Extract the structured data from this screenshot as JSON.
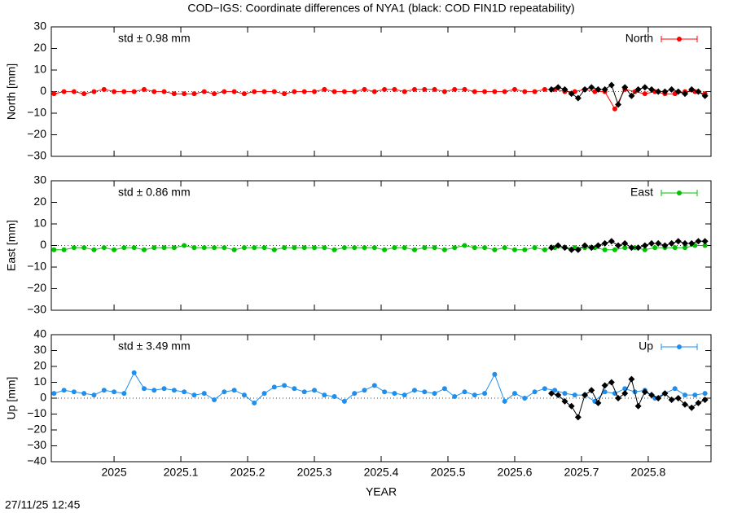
{
  "page": {
    "title": "COD−IGS: Coordinate differences of NYA1 (black: COD FIN1D repeatability)",
    "timestamp": "27/11/25 12:45"
  },
  "chart_data": [
    {
      "type": "line",
      "ylabel": "North [mm]",
      "annotation": "std ± 0.98 mm",
      "legend": "upper right",
      "zero_line": true,
      "xlim": [
        2024.906,
        2025.894
      ],
      "ylim": [
        -30,
        30
      ],
      "yticks": [
        {
          "value": -30,
          "label": "−30"
        },
        {
          "value": -20,
          "label": "−20"
        },
        {
          "value": -10,
          "label": "−10"
        },
        0,
        10,
        20,
        30
      ],
      "series": [
        {
          "name": "North",
          "color": "#ff0000",
          "x": [
            2024.91,
            2024.925,
            2024.94,
            2024.955,
            2024.97,
            2024.985,
            2025.0,
            2025.015,
            2025.03,
            2025.045,
            2025.06,
            2025.075,
            2025.09,
            2025.105,
            2025.12,
            2025.135,
            2025.15,
            2025.165,
            2025.18,
            2025.195,
            2025.21,
            2025.225,
            2025.24,
            2025.255,
            2025.27,
            2025.285,
            2025.3,
            2025.315,
            2025.33,
            2025.345,
            2025.36,
            2025.375,
            2025.39,
            2025.405,
            2025.42,
            2025.435,
            2025.45,
            2025.465,
            2025.48,
            2025.495,
            2025.51,
            2025.525,
            2025.54,
            2025.555,
            2025.57,
            2025.585,
            2025.6,
            2025.615,
            2025.63,
            2025.645,
            2025.66,
            2025.675,
            2025.69,
            2025.705,
            2025.72,
            2025.735,
            2025.75,
            2025.765,
            2025.78,
            2025.795,
            2025.81,
            2025.825,
            2025.84,
            2025.855,
            2025.87,
            2025.885
          ],
          "values": [
            -1,
            0,
            0,
            -1,
            0,
            1,
            0,
            0,
            0,
            1,
            0,
            0,
            -1,
            -1,
            -1,
            0,
            -1,
            0,
            0,
            -1,
            0,
            0,
            0,
            -1,
            0,
            0,
            0,
            1,
            0,
            0,
            0,
            1,
            0,
            1,
            1,
            0,
            1,
            1,
            1,
            0,
            1,
            1,
            0,
            0,
            0,
            0,
            1,
            0,
            0,
            1,
            1,
            0,
            0,
            1,
            0,
            0,
            -8,
            1,
            0,
            -1,
            0,
            -1,
            -1,
            0,
            0,
            -1
          ]
        },
        {
          "color": "#000000",
          "x": [
            2025.655,
            2025.665,
            2025.675,
            2025.685,
            2025.695,
            2025.705,
            2025.715,
            2025.725,
            2025.735,
            2025.745,
            2025.755,
            2025.765,
            2025.775,
            2025.785,
            2025.795,
            2025.805,
            2025.815,
            2025.825,
            2025.835,
            2025.845,
            2025.855,
            2025.865,
            2025.875,
            2025.885
          ],
          "values": [
            1,
            2,
            1,
            -1,
            -3,
            1,
            2,
            1,
            1,
            3,
            -6,
            2,
            -2,
            1,
            2,
            1,
            0,
            0,
            1,
            0,
            -1,
            1,
            0,
            -2
          ]
        }
      ]
    },
    {
      "type": "line",
      "ylabel": "East [mm]",
      "annotation": "std ± 0.86 mm",
      "legend": "upper right",
      "zero_line": true,
      "xlim": [
        2024.906,
        2025.894
      ],
      "ylim": [
        -30,
        30
      ],
      "yticks": [
        {
          "value": -30,
          "label": "−30"
        },
        {
          "value": -20,
          "label": "−20"
        },
        {
          "value": -10,
          "label": "−10"
        },
        0,
        10,
        20,
        30
      ],
      "series": [
        {
          "name": "East",
          "color": "#00c000",
          "x": [
            2024.91,
            2024.925,
            2024.94,
            2024.955,
            2024.97,
            2024.985,
            2025.0,
            2025.015,
            2025.03,
            2025.045,
            2025.06,
            2025.075,
            2025.09,
            2025.105,
            2025.12,
            2025.135,
            2025.15,
            2025.165,
            2025.18,
            2025.195,
            2025.21,
            2025.225,
            2025.24,
            2025.255,
            2025.27,
            2025.285,
            2025.3,
            2025.315,
            2025.33,
            2025.345,
            2025.36,
            2025.375,
            2025.39,
            2025.405,
            2025.42,
            2025.435,
            2025.45,
            2025.465,
            2025.48,
            2025.495,
            2025.51,
            2025.525,
            2025.54,
            2025.555,
            2025.57,
            2025.585,
            2025.6,
            2025.615,
            2025.63,
            2025.645,
            2025.66,
            2025.675,
            2025.69,
            2025.705,
            2025.72,
            2025.735,
            2025.75,
            2025.765,
            2025.78,
            2025.795,
            2025.81,
            2025.825,
            2025.84,
            2025.855,
            2025.87,
            2025.885
          ],
          "values": [
            -2,
            -2,
            -1,
            -1,
            -2,
            -1,
            -2,
            -1,
            -1,
            -2,
            -1,
            -1,
            -1,
            0,
            -1,
            -1,
            -1,
            -1,
            -2,
            -1,
            -1,
            -1,
            -2,
            -1,
            -1,
            -1,
            -1,
            -1,
            -2,
            -1,
            -1,
            -1,
            -1,
            -2,
            -1,
            -1,
            -2,
            -1,
            -1,
            -2,
            -1,
            0,
            -1,
            -1,
            -2,
            -1,
            -2,
            -2,
            -1,
            -2,
            -1,
            -1,
            -1,
            -1,
            -1,
            -2,
            -2,
            -1,
            -1,
            -2,
            -1,
            -1,
            -1,
            -1,
            0,
            0
          ]
        },
        {
          "color": "#000000",
          "x": [
            2025.655,
            2025.665,
            2025.675,
            2025.685,
            2025.695,
            2025.705,
            2025.715,
            2025.725,
            2025.735,
            2025.745,
            2025.755,
            2025.765,
            2025.775,
            2025.785,
            2025.795,
            2025.805,
            2025.815,
            2025.825,
            2025.835,
            2025.845,
            2025.855,
            2025.865,
            2025.875,
            2025.885
          ],
          "values": [
            -1,
            0,
            -1,
            -2,
            -2,
            0,
            -1,
            0,
            1,
            2,
            0,
            1,
            -1,
            -1,
            0,
            1,
            1,
            0,
            1,
            2,
            1,
            1,
            2,
            2
          ]
        }
      ]
    },
    {
      "type": "line",
      "ylabel": "Up [mm]",
      "xlabel": "YEAR",
      "annotation": "std ± 3.49 mm",
      "legend": "upper right",
      "zero_line": true,
      "xlim": [
        2024.906,
        2025.894
      ],
      "ylim": [
        -40,
        40
      ],
      "xticks": [
        2025,
        2025.1,
        2025.2,
        2025.3,
        2025.4,
        2025.5,
        2025.6,
        2025.7,
        2025.8
      ],
      "yticks": [
        {
          "value": -40,
          "label": "−40"
        },
        {
          "value": -30,
          "label": "−30"
        },
        {
          "value": -20,
          "label": "−20"
        },
        {
          "value": -10,
          "label": "−10"
        },
        0,
        10,
        20,
        30,
        40
      ],
      "series": [
        {
          "name": "Up",
          "color": "#1e8fef",
          "x": [
            2024.91,
            2024.925,
            2024.94,
            2024.955,
            2024.97,
            2024.985,
            2025.0,
            2025.015,
            2025.03,
            2025.045,
            2025.06,
            2025.075,
            2025.09,
            2025.105,
            2025.12,
            2025.135,
            2025.15,
            2025.165,
            2025.18,
            2025.195,
            2025.21,
            2025.225,
            2025.24,
            2025.255,
            2025.27,
            2025.285,
            2025.3,
            2025.315,
            2025.33,
            2025.345,
            2025.36,
            2025.375,
            2025.39,
            2025.405,
            2025.42,
            2025.435,
            2025.45,
            2025.465,
            2025.48,
            2025.495,
            2025.51,
            2025.525,
            2025.54,
            2025.555,
            2025.57,
            2025.585,
            2025.6,
            2025.615,
            2025.63,
            2025.645,
            2025.66,
            2025.675,
            2025.69,
            2025.705,
            2025.72,
            2025.735,
            2025.75,
            2025.765,
            2025.78,
            2025.795,
            2025.81,
            2025.825,
            2025.84,
            2025.855,
            2025.87,
            2025.885
          ],
          "values": [
            3,
            5,
            4,
            3,
            2,
            5,
            4,
            3,
            16,
            6,
            5,
            6,
            5,
            4,
            2,
            3,
            -1,
            4,
            5,
            2,
            -3,
            3,
            7,
            8,
            6,
            4,
            5,
            2,
            1,
            -2,
            3,
            5,
            8,
            4,
            3,
            2,
            5,
            4,
            3,
            6,
            1,
            4,
            2,
            3,
            15,
            -2,
            3,
            0,
            4,
            6,
            5,
            3,
            2,
            2,
            -2,
            4,
            3,
            6,
            4,
            5,
            0,
            3,
            6,
            2,
            2,
            3
          ]
        },
        {
          "color": "#000000",
          "x": [
            2025.655,
            2025.665,
            2025.675,
            2025.685,
            2025.695,
            2025.705,
            2025.715,
            2025.725,
            2025.735,
            2025.745,
            2025.755,
            2025.765,
            2025.775,
            2025.785,
            2025.795,
            2025.805,
            2025.815,
            2025.825,
            2025.835,
            2025.845,
            2025.855,
            2025.865,
            2025.875,
            2025.885
          ],
          "values": [
            3,
            2,
            -2,
            -5,
            -12,
            2,
            5,
            -3,
            8,
            10,
            0,
            3,
            12,
            -5,
            4,
            2,
            0,
            3,
            -1,
            0,
            -4,
            -6,
            -3,
            -1
          ]
        }
      ]
    }
  ]
}
